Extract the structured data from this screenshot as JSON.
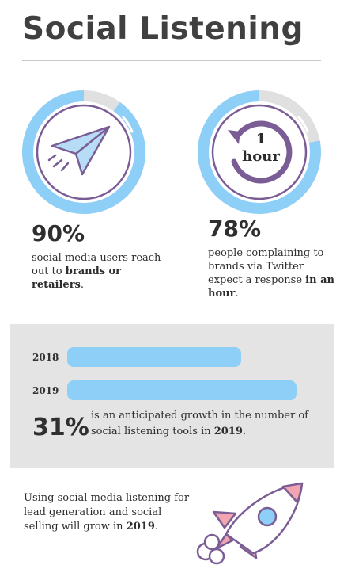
{
  "title": "Social Listening",
  "stats": [
    {
      "percent": "90%",
      "ring_fraction": 0.9,
      "text_before": "social media users reach out to ",
      "text_bold": "brands or retailers",
      "text_after": "."
    },
    {
      "percent": "78%",
      "ring_fraction": 0.78,
      "text_before": "people complaining to brands via Twitter expect a response ",
      "text_bold": "in an hour",
      "text_after": "."
    }
  ],
  "clock": {
    "line1": "1",
    "line2": "hour"
  },
  "growth": {
    "bars": [
      {
        "year": "2018",
        "value": 0.76
      },
      {
        "year": "2019",
        "value": 1.0
      }
    ],
    "percent": "31%",
    "text_before": "is an anticipated growth in the number of social listening tools in ",
    "text_bold": "2019",
    "text_after": "."
  },
  "footer": {
    "text_before": "Using social media listening for lead generation and social selling will grow in ",
    "text_bold": "2019",
    "text_after": "."
  },
  "colors": {
    "ring_fill": "#8ecff7",
    "ring_track": "#e0e0e0",
    "icon_purple": "#7b5d95",
    "bar": "#8ecff7",
    "panel": "#e4e4e4",
    "rocket_pink": "#f2a5b0"
  }
}
